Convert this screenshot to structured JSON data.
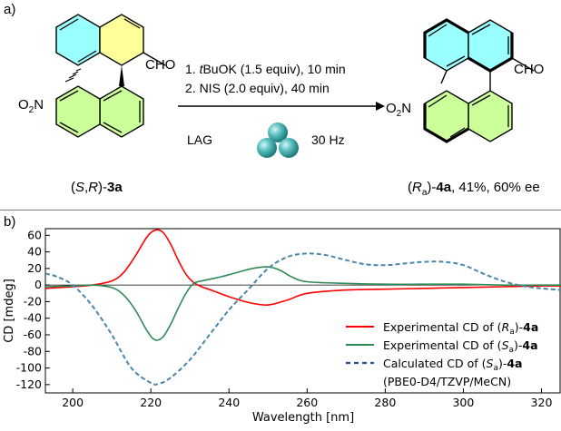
{
  "panel_a": {
    "label": "a)",
    "reactant": {
      "name_prefix": "(",
      "name_stereo_S": "S",
      "name_comma": ",",
      "name_stereo_R": "R",
      "name_mid": ")-",
      "name_bold": "3a",
      "nitro_label": "O",
      "nitro_sub": "2",
      "nitro_N": "N",
      "aldehyde": "CHO"
    },
    "product": {
      "name_prefix": "(",
      "name_R": "R",
      "name_sub": "a",
      "name_mid": ")-",
      "name_bold": "4a",
      "name_suffix": ", 41%, 60% ee",
      "nitro_label": "O",
      "nitro_sub": "2",
      "nitro_N": "N",
      "aldehyde": "CHO"
    },
    "conditions": {
      "step1_pre": "1. ",
      "step1_italic": "t",
      "step1_post": "BuOK (1.5 equiv), 10 min",
      "step2": "2. NIS (2.0 equiv), 40 min",
      "lag": "LAG",
      "freq": "30 Hz"
    },
    "colors": {
      "naphthalene_fill": "#99FFFF",
      "ring_fill": "#FFFF99",
      "green_fill": "#CCFF99",
      "ball_teal": "#2E9C9C"
    }
  },
  "panel_b": {
    "label": "b)",
    "legend": [
      {
        "text_pre": "Experimental CD of (",
        "stereo": "R",
        "sub": "a",
        "text_mid": ")-",
        "bold": "4a",
        "color": "#FF0000",
        "style": "solid"
      },
      {
        "text_pre": "Experimental CD of (",
        "stereo": "S",
        "sub": "a",
        "text_mid": ")-",
        "bold": "4a",
        "color": "#2E8B57",
        "style": "solid"
      },
      {
        "text_pre": "Calculated CD of (",
        "stereo": "S",
        "sub": "a",
        "text_mid": ")-",
        "bold": "4a",
        "color": "#2B4C9C",
        "style": "dashed",
        "note": "(PBE0-D4/TZVP/MeCN)"
      }
    ]
  },
  "chart_data": {
    "type": "line",
    "title": "",
    "xlabel": "Wavelength [nm]",
    "ylabel": "CD [mdeg]",
    "xlim": [
      193,
      325
    ],
    "ylim": [
      -130,
      68
    ],
    "xticks": [
      200,
      220,
      240,
      260,
      280,
      300,
      320
    ],
    "yticks": [
      60,
      40,
      20,
      0,
      -20,
      -40,
      -60,
      -80,
      -100,
      -120
    ],
    "zero_line": true,
    "legend_position": "bottom-right",
    "series": [
      {
        "name": "Experimental CD of (Ra)-4a",
        "color": "#FF0000",
        "dash": "solid",
        "x": [
          193,
          200,
          205,
          210,
          213,
          216,
          219,
          221,
          223,
          225,
          227,
          229,
          231,
          233,
          236,
          240,
          245,
          250,
          255,
          260,
          270,
          280,
          290,
          300,
          310,
          320,
          325
        ],
        "y": [
          -4,
          -2,
          0,
          5,
          15,
          35,
          58,
          66,
          64,
          50,
          30,
          13,
          3,
          -2,
          -7,
          -14,
          -21,
          -24,
          -18,
          -10,
          -6,
          -5,
          -4,
          -3,
          -2,
          -1,
          -1
        ]
      },
      {
        "name": "Experimental CD of (Sa)-4a",
        "color": "#2E8B57",
        "dash": "solid",
        "x": [
          193,
          200,
          205,
          210,
          213,
          216,
          219,
          221,
          223,
          225,
          227,
          229,
          231,
          234,
          238,
          242,
          246,
          250,
          253,
          256,
          260,
          270,
          280,
          290,
          300,
          310,
          320,
          325
        ],
        "y": [
          -2,
          -1,
          0,
          -3,
          -12,
          -30,
          -55,
          -66,
          -63,
          -48,
          -28,
          -10,
          2,
          6,
          10,
          15,
          20,
          22,
          18,
          10,
          4,
          2,
          1,
          1,
          1,
          0,
          0,
          0
        ]
      },
      {
        "name": "Calculated CD of (Sa)-4a",
        "color": "#4A86A8",
        "dash": "dashed",
        "x": [
          193,
          196,
          200,
          205,
          210,
          215,
          220,
          222,
          225,
          230,
          235,
          240,
          245,
          250,
          255,
          260,
          265,
          270,
          275,
          280,
          285,
          290,
          295,
          300,
          305,
          310,
          315,
          320,
          325
        ],
        "y": [
          14,
          10,
          0,
          -25,
          -60,
          -100,
          -118,
          -119,
          -112,
          -90,
          -60,
          -30,
          -5,
          20,
          34,
          38,
          36,
          30,
          25,
          24,
          26,
          28,
          28,
          24,
          14,
          5,
          -1,
          -4,
          -6
        ]
      }
    ]
  }
}
